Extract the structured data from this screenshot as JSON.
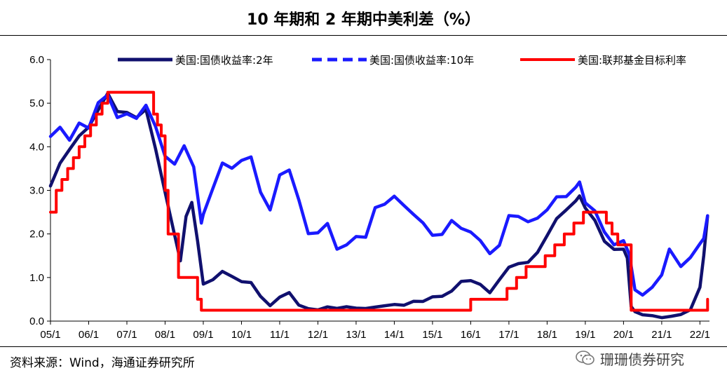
{
  "header": {
    "title": "10 年期和 2 年期中美利差（%）"
  },
  "footer": {
    "source": "资料来源：Wind，海通证券研究所",
    "watermark": "珊珊债券研究"
  },
  "chart_data": {
    "type": "line",
    "title": "10 年期和 2 年期中美利差（%）",
    "xlabel": "",
    "ylabel": "",
    "xlim": [
      2005.0,
      2022.25
    ],
    "ylim": [
      0,
      6
    ],
    "grid": false,
    "legend_position": "top",
    "x_tick_labels": [
      "05/1",
      "06/1",
      "07/1",
      "08/1",
      "09/1",
      "10/1",
      "11/1",
      "12/1",
      "13/1",
      "14/1",
      "15/1",
      "16/1",
      "17/1",
      "18/1",
      "19/1",
      "20/1",
      "21/1",
      "22/1"
    ],
    "y_tick_labels": [
      "0.0",
      "1.0",
      "2.0",
      "3.0",
      "4.0",
      "5.0",
      "6.0"
    ],
    "series": [
      {
        "name": "美国:国债收益率:2年",
        "color": "#10106e",
        "style": "solid",
        "x": [
          2005.0,
          2005.25,
          2005.5,
          2005.75,
          2006.0,
          2006.25,
          2006.5,
          2006.75,
          2007.0,
          2007.25,
          2007.5,
          2007.75,
          2008.0,
          2008.2,
          2008.4,
          2008.55,
          2008.7,
          2008.85,
          2009.0,
          2009.25,
          2009.5,
          2009.75,
          2010.0,
          2010.25,
          2010.5,
          2010.75,
          2011.0,
          2011.25,
          2011.5,
          2011.75,
          2012.0,
          2012.25,
          2012.5,
          2012.75,
          2013.0,
          2013.25,
          2013.5,
          2013.75,
          2014.0,
          2014.25,
          2014.5,
          2014.75,
          2015.0,
          2015.25,
          2015.5,
          2015.75,
          2016.0,
          2016.25,
          2016.5,
          2016.75,
          2017.0,
          2017.25,
          2017.5,
          2017.75,
          2018.0,
          2018.25,
          2018.5,
          2018.75,
          2018.85,
          2019.0,
          2019.25,
          2019.5,
          2019.75,
          2020.0,
          2020.1,
          2020.2,
          2020.3,
          2020.5,
          2020.75,
          2021.0,
          2021.25,
          2021.5,
          2021.75,
          2022.0,
          2022.1,
          2022.2
        ],
        "y": [
          3.1,
          3.6,
          3.9,
          4.2,
          4.4,
          4.8,
          5.2,
          4.8,
          4.8,
          4.7,
          4.9,
          4.0,
          3.0,
          2.2,
          1.4,
          2.4,
          2.7,
          1.8,
          0.8,
          0.9,
          1.1,
          1.0,
          0.9,
          0.9,
          0.6,
          0.4,
          0.6,
          0.7,
          0.4,
          0.3,
          0.25,
          0.3,
          0.25,
          0.28,
          0.25,
          0.25,
          0.3,
          0.35,
          0.4,
          0.4,
          0.5,
          0.5,
          0.6,
          0.6,
          0.7,
          0.9,
          0.9,
          0.8,
          0.6,
          0.9,
          1.2,
          1.3,
          1.35,
          1.6,
          2.0,
          2.4,
          2.6,
          2.8,
          2.9,
          2.6,
          2.3,
          1.8,
          1.6,
          1.6,
          1.4,
          0.3,
          0.2,
          0.15,
          0.15,
          0.12,
          0.16,
          0.2,
          0.3,
          0.8,
          1.5,
          2.4
        ]
      },
      {
        "name": "美国:国债收益率:10年",
        "color": "#1a1aff",
        "style": "dashed",
        "x": [
          2005.0,
          2005.25,
          2005.5,
          2005.75,
          2006.0,
          2006.25,
          2006.5,
          2006.75,
          2007.0,
          2007.25,
          2007.5,
          2007.75,
          2008.0,
          2008.25,
          2008.5,
          2008.75,
          2008.95,
          2009.0,
          2009.25,
          2009.5,
          2009.75,
          2010.0,
          2010.25,
          2010.5,
          2010.75,
          2011.0,
          2011.25,
          2011.5,
          2011.75,
          2012.0,
          2012.25,
          2012.5,
          2012.75,
          2013.0,
          2013.25,
          2013.5,
          2013.75,
          2014.0,
          2014.25,
          2014.5,
          2014.75,
          2015.0,
          2015.25,
          2015.5,
          2015.75,
          2016.0,
          2016.25,
          2016.5,
          2016.75,
          2017.0,
          2017.25,
          2017.5,
          2017.75,
          2018.0,
          2018.25,
          2018.5,
          2018.75,
          2018.85,
          2019.0,
          2019.25,
          2019.5,
          2019.75,
          2020.0,
          2020.15,
          2020.3,
          2020.5,
          2020.75,
          2021.0,
          2021.2,
          2021.5,
          2021.75,
          2022.0,
          2022.1,
          2022.2
        ],
        "y": [
          4.2,
          4.4,
          4.1,
          4.5,
          4.4,
          5.0,
          5.2,
          4.7,
          4.8,
          4.7,
          5.0,
          4.5,
          3.8,
          3.6,
          4.0,
          3.5,
          2.2,
          2.4,
          3.0,
          3.6,
          3.5,
          3.7,
          3.8,
          3.0,
          2.6,
          3.4,
          3.5,
          2.8,
          2.0,
          2.0,
          2.2,
          1.6,
          1.7,
          1.9,
          1.9,
          2.6,
          2.7,
          2.9,
          2.7,
          2.5,
          2.3,
          2.0,
          2.0,
          2.3,
          2.1,
          2.0,
          1.8,
          1.5,
          1.7,
          2.4,
          2.4,
          2.3,
          2.4,
          2.6,
          2.9,
          2.9,
          3.1,
          3.2,
          2.7,
          2.5,
          2.0,
          1.7,
          1.8,
          1.5,
          0.7,
          0.6,
          0.8,
          1.1,
          1.7,
          1.3,
          1.5,
          1.8,
          1.9,
          2.4
        ]
      },
      {
        "name": "美国:联邦基金目标利率",
        "color": "#ff0000",
        "style": "step",
        "x": [
          2005.0,
          2005.15,
          2005.3,
          2005.45,
          2005.6,
          2005.75,
          2005.9,
          2006.05,
          2006.2,
          2006.35,
          2006.5,
          2007.7,
          2007.8,
          2007.9,
          2008.0,
          2008.08,
          2008.25,
          2008.35,
          2008.8,
          2008.85,
          2008.95,
          2016.0,
          2016.95,
          2017.2,
          2017.45,
          2017.95,
          2018.2,
          2018.45,
          2018.7,
          2018.95,
          2019.55,
          2019.7,
          2019.85,
          2020.2,
          2020.25,
          2022.2
        ],
        "y": [
          2.5,
          3.0,
          3.25,
          3.5,
          3.75,
          4.0,
          4.25,
          4.5,
          4.75,
          5.0,
          5.25,
          4.75,
          4.5,
          4.25,
          3.0,
          2.0,
          2.0,
          1.0,
          1.0,
          0.5,
          0.25,
          0.5,
          0.75,
          1.0,
          1.25,
          1.5,
          1.75,
          2.0,
          2.25,
          2.5,
          2.25,
          2.0,
          1.75,
          0.25,
          0.25,
          0.5
        ]
      }
    ]
  }
}
